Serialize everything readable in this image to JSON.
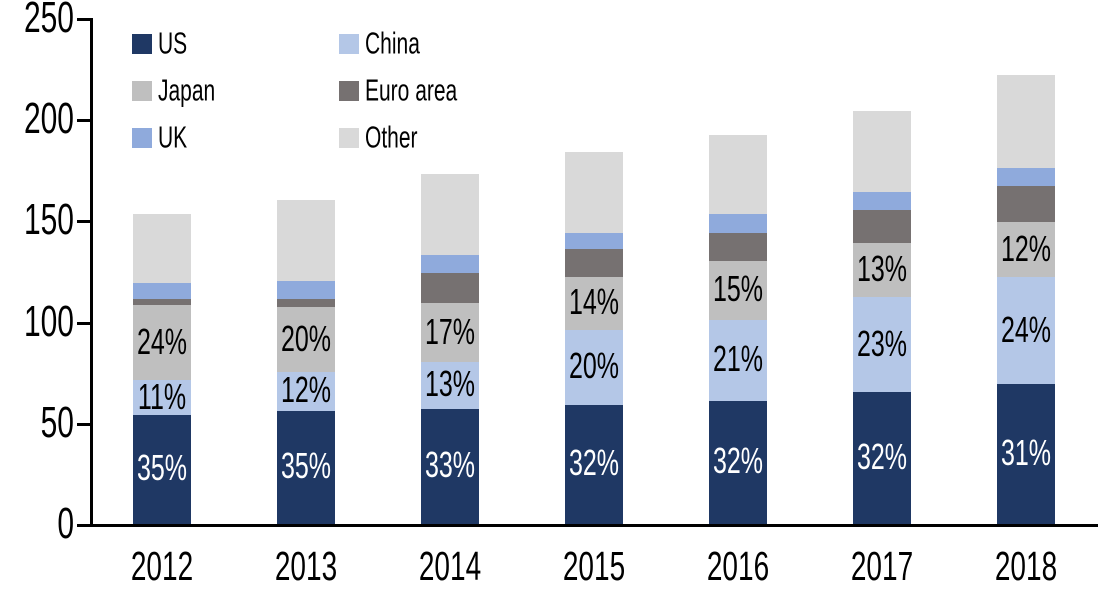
{
  "chart_data": {
    "type": "bar",
    "stacked": true,
    "title": "",
    "xlabel": "",
    "ylabel": "",
    "categories": [
      "2012",
      "2013",
      "2014",
      "2015",
      "2016",
      "2017",
      "2018"
    ],
    "series": [
      {
        "name": "US",
        "color": "#1f3864",
        "values": [
          54,
          56,
          57,
          59,
          61,
          65,
          69
        ],
        "labels": [
          "35%",
          "35%",
          "33%",
          "32%",
          "32%",
          "32%",
          "31%"
        ],
        "label_color": "#ffffff"
      },
      {
        "name": "China",
        "color": "#b4c7e7",
        "values": [
          17,
          19,
          23,
          37,
          40,
          47,
          53
        ],
        "labels": [
          "11%",
          "12%",
          "13%",
          "20%",
          "21%",
          "23%",
          "24%"
        ],
        "label_color": "#000000"
      },
      {
        "name": "Japan",
        "color": "#bfbfbf",
        "values": [
          37,
          32,
          29,
          26,
          29,
          27,
          27
        ],
        "labels": [
          "24%",
          "20%",
          "17%",
          "14%",
          "15%",
          "13%",
          "12%"
        ],
        "label_color": "#000000"
      },
      {
        "name": "Euro area",
        "color": "#767171",
        "values": [
          3,
          4,
          15,
          14,
          14,
          16,
          18
        ]
      },
      {
        "name": "UK",
        "color": "#8faadc",
        "values": [
          8,
          9,
          9,
          8,
          9,
          9,
          9
        ]
      },
      {
        "name": "Other",
        "color": "#d9d9d9",
        "values": [
          34,
          40,
          40,
          40,
          39,
          40,
          46
        ]
      }
    ],
    "totals": [
      153,
      160,
      173,
      184,
      192,
      204,
      222
    ],
    "ylim": [
      0,
      250
    ],
    "yticks": [
      "0",
      "50",
      "100",
      "150",
      "200",
      "250"
    ],
    "grid": false,
    "legend_position": "top-left",
    "legend_columns": 2,
    "axis_color": "#000000",
    "background_color": "#ffffff"
  }
}
